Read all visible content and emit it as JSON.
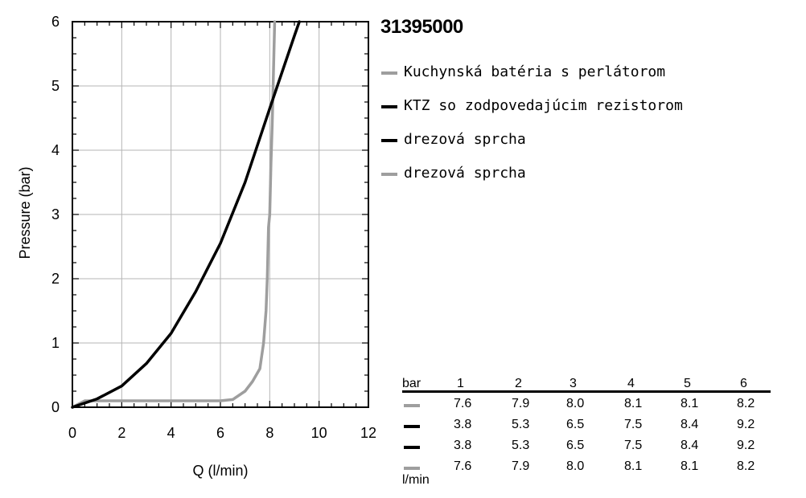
{
  "product_code": "31395000",
  "legend": [
    {
      "label": "Kuchynská batéria s perlátorom",
      "color": "#9e9e9e"
    },
    {
      "label": "KTZ so zodpovedajúcim rezistorom",
      "color": "#000000"
    },
    {
      "label": "drezová sprcha",
      "color": "#000000"
    },
    {
      "label": "drezová sprcha",
      "color": "#9e9e9e"
    }
  ],
  "chart_data": {
    "type": "line",
    "xlabel": "Q (l/min)",
    "ylabel": "Pressure (bar)",
    "xlim": [
      0,
      12
    ],
    "ylim": [
      0,
      6
    ],
    "x_ticks": [
      "0",
      "2",
      "4",
      "6",
      "8",
      "10",
      "12"
    ],
    "y_ticks": [
      "0",
      "1",
      "2",
      "3",
      "4",
      "5",
      "6"
    ],
    "grid": true,
    "series": [
      {
        "color": "#9e9e9e",
        "x": [
          0,
          0.5,
          2,
          4,
          6,
          6.5,
          7.0,
          7.3,
          7.6,
          7.75,
          7.85,
          7.9,
          7.95,
          8.0,
          8.05,
          8.1,
          8.15,
          8.2
        ],
        "y": [
          0,
          0.1,
          0.1,
          0.1,
          0.1,
          0.12,
          0.25,
          0.4,
          0.6,
          1.0,
          1.5,
          2.0,
          2.8,
          3.0,
          3.8,
          4.4,
          5.2,
          6.0
        ]
      },
      {
        "color": "#000000",
        "x": [
          0,
          1,
          2,
          3,
          4,
          5,
          6,
          7,
          8,
          9,
          9.2
        ],
        "y": [
          0,
          0.13,
          0.33,
          0.68,
          1.15,
          1.8,
          2.55,
          3.5,
          4.65,
          5.78,
          6.0
        ]
      }
    ]
  },
  "table": {
    "header_label": "bar",
    "unit_label": "l/min",
    "columns": [
      "1",
      "2",
      "3",
      "4",
      "5",
      "6"
    ],
    "rows": [
      {
        "color": "#9e9e9e",
        "values": [
          "7.6",
          "7.9",
          "8.0",
          "8.1",
          "8.1",
          "8.2"
        ]
      },
      {
        "color": "#000000",
        "values": [
          "3.8",
          "5.3",
          "6.5",
          "7.5",
          "8.4",
          "9.2"
        ]
      },
      {
        "color": "#000000",
        "values": [
          "3.8",
          "5.3",
          "6.5",
          "7.5",
          "8.4",
          "9.2"
        ]
      },
      {
        "color": "#9e9e9e",
        "values": [
          "7.6",
          "7.9",
          "8.0",
          "8.1",
          "8.1",
          "8.2"
        ]
      }
    ]
  }
}
